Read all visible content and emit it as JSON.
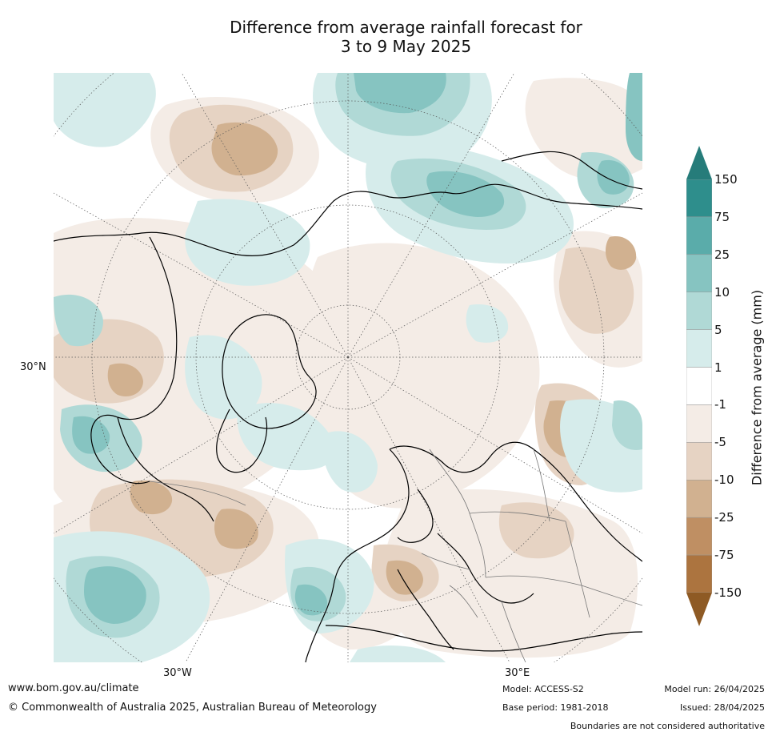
{
  "title": {
    "line1": "Difference from average rainfall forecast for",
    "line2": "3 to 9 May 2025"
  },
  "map": {
    "projection": "north-polar",
    "labels": {
      "lat_30n": "30°N",
      "lon_30w": "30°W",
      "lon_30e": "30°E"
    },
    "palette": {
      "wet_3": "#2e8e8c",
      "wet_2": "#5aacaa",
      "wet_1": "#86c4c1",
      "wet_0": "#b0d9d6",
      "wet_00": "#d6eceb",
      "neutral": "#ffffff",
      "dry_00": "#f4ece6",
      "dry_0": "#e6d3c3",
      "dry_1": "#d1b190",
      "dry_2": "#bf8f63",
      "dry_3": "#ac743f",
      "dry_4": "#8e5a24"
    }
  },
  "colorbar": {
    "title": "Difference from average (mm)",
    "ticks": [
      "150",
      "75",
      "25",
      "10",
      "5",
      "1",
      "-1",
      "-5",
      "-10",
      "-25",
      "-75",
      "-150"
    ],
    "colors": [
      "#2e8e8c",
      "#5aacaa",
      "#86c4c1",
      "#b0d9d6",
      "#d6eceb",
      "#ffffff",
      "#f4ece6",
      "#e6d3c3",
      "#d1b190",
      "#bf8f63",
      "#ac743f"
    ],
    "top_cap": "#267c7a",
    "bottom_cap": "#8e5a24"
  },
  "footer": {
    "url": "www.bom.gov.au/climate",
    "copyright": "© Commonwealth of Australia 2025, Australian Bureau of Meteorology",
    "model": "Model: ACCESS-S2",
    "base_period": "Base period: 1981-2018",
    "model_run": "Model run: 26/04/2025",
    "issued": "Issued: 28/04/2025",
    "disclaimer": "Boundaries are not considered authoritative"
  }
}
